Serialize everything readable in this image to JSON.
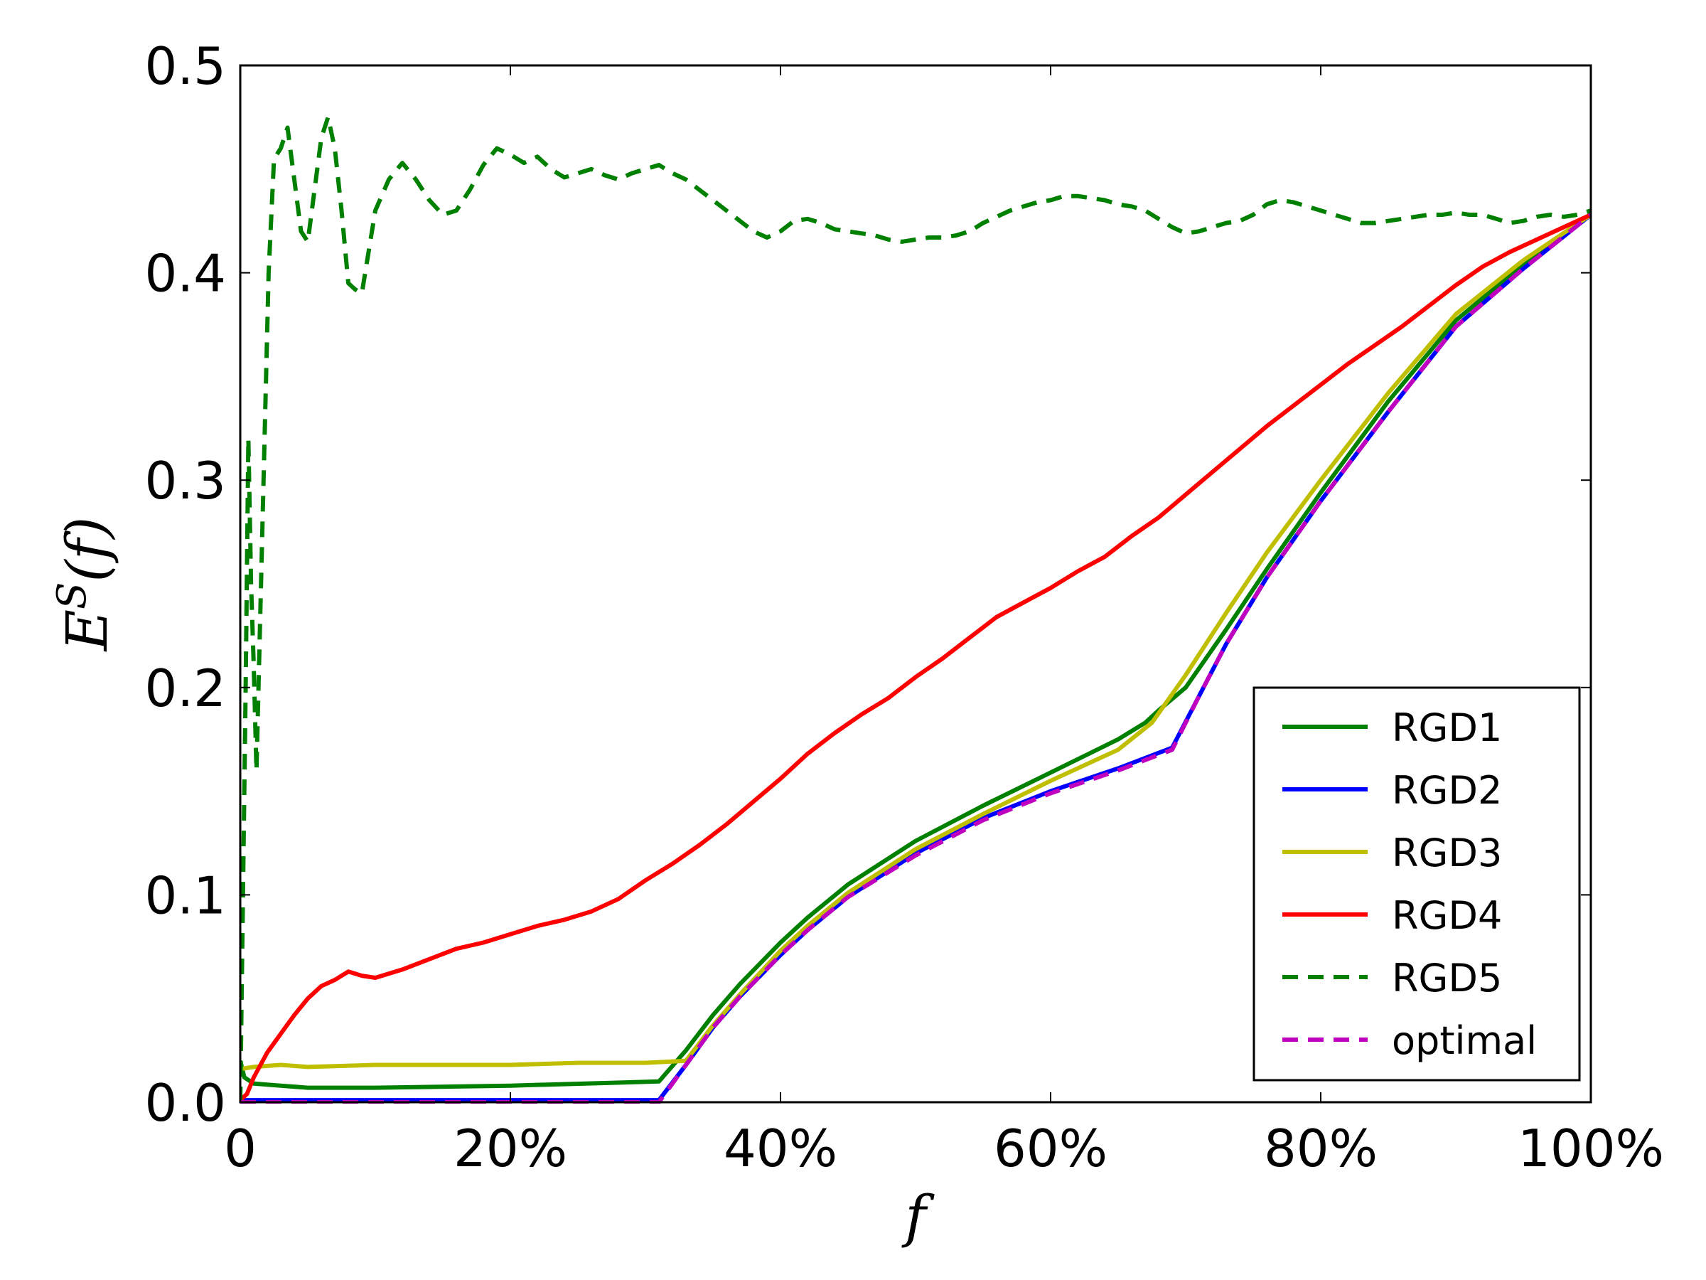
{
  "chart_data": {
    "type": "line",
    "title": "",
    "xlabel": "f",
    "ylabel_base": "E",
    "ylabel_sup": "S",
    "ylabel_arg": "(f)",
    "xlim": [
      0,
      100
    ],
    "ylim": [
      0,
      0.5
    ],
    "xticks": [
      0,
      20,
      40,
      60,
      80,
      100
    ],
    "xtick_labels": [
      "0",
      "20%",
      "40%",
      "60%",
      "80%",
      "100%"
    ],
    "yticks": [
      0.0,
      0.1,
      0.2,
      0.3,
      0.4,
      0.5
    ],
    "ytick_labels": [
      "0.0",
      "0.1",
      "0.2",
      "0.3",
      "0.4",
      "0.5"
    ],
    "grid": false,
    "legend_position": "lower-right",
    "series": [
      {
        "name": "RGD1",
        "color": "#008000",
        "dash": "solid",
        "points": [
          [
            0,
            0.02
          ],
          [
            0.3,
            0.012
          ],
          [
            1,
            0.009
          ],
          [
            3,
            0.008
          ],
          [
            5,
            0.007
          ],
          [
            10,
            0.007
          ],
          [
            20,
            0.008
          ],
          [
            31,
            0.01
          ],
          [
            33,
            0.025
          ],
          [
            35,
            0.042
          ],
          [
            37,
            0.057
          ],
          [
            40,
            0.077
          ],
          [
            42,
            0.089
          ],
          [
            45,
            0.105
          ],
          [
            50,
            0.126
          ],
          [
            55,
            0.143
          ],
          [
            60,
            0.159
          ],
          [
            65,
            0.175
          ],
          [
            67,
            0.183
          ],
          [
            68,
            0.189
          ],
          [
            70,
            0.2
          ],
          [
            73,
            0.228
          ],
          [
            76,
            0.257
          ],
          [
            80,
            0.294
          ],
          [
            85,
            0.338
          ],
          [
            90,
            0.377
          ],
          [
            95,
            0.404
          ],
          [
            100,
            0.428
          ]
        ]
      },
      {
        "name": "RGD2",
        "color": "#0000ff",
        "dash": "solid",
        "points": [
          [
            0,
            0.001
          ],
          [
            10,
            0.001
          ],
          [
            20,
            0.001
          ],
          [
            31,
            0.001
          ],
          [
            33,
            0.018
          ],
          [
            35,
            0.036
          ],
          [
            37,
            0.051
          ],
          [
            40,
            0.071
          ],
          [
            42,
            0.083
          ],
          [
            45,
            0.099
          ],
          [
            50,
            0.12
          ],
          [
            55,
            0.137
          ],
          [
            60,
            0.15
          ],
          [
            65,
            0.161
          ],
          [
            69,
            0.171
          ],
          [
            71,
            0.196
          ],
          [
            73,
            0.221
          ],
          [
            76,
            0.253
          ],
          [
            80,
            0.29
          ],
          [
            85,
            0.333
          ],
          [
            90,
            0.374
          ],
          [
            95,
            0.402
          ],
          [
            100,
            0.428
          ]
        ]
      },
      {
        "name": "RGD3",
        "color": "#bfbf00",
        "dash": "solid",
        "points": [
          [
            0,
            0.016
          ],
          [
            1,
            0.017
          ],
          [
            3,
            0.018
          ],
          [
            5,
            0.017
          ],
          [
            10,
            0.018
          ],
          [
            20,
            0.018
          ],
          [
            25,
            0.019
          ],
          [
            30,
            0.019
          ],
          [
            33,
            0.02
          ],
          [
            35,
            0.037
          ],
          [
            37,
            0.052
          ],
          [
            40,
            0.073
          ],
          [
            42,
            0.085
          ],
          [
            45,
            0.101
          ],
          [
            50,
            0.122
          ],
          [
            55,
            0.139
          ],
          [
            60,
            0.155
          ],
          [
            65,
            0.17
          ],
          [
            67.5,
            0.183
          ],
          [
            70,
            0.206
          ],
          [
            73,
            0.236
          ],
          [
            76,
            0.265
          ],
          [
            80,
            0.3
          ],
          [
            85,
            0.342
          ],
          [
            90,
            0.38
          ],
          [
            95,
            0.406
          ],
          [
            100,
            0.428
          ]
        ]
      },
      {
        "name": "RGD4",
        "color": "#ff0000",
        "dash": "solid",
        "points": [
          [
            0,
            0.001
          ],
          [
            0.5,
            0.004
          ],
          [
            1,
            0.012
          ],
          [
            1.5,
            0.018
          ],
          [
            2,
            0.024
          ],
          [
            3,
            0.033
          ],
          [
            4,
            0.042
          ],
          [
            5,
            0.05
          ],
          [
            6,
            0.056
          ],
          [
            7,
            0.059
          ],
          [
            8,
            0.063
          ],
          [
            9,
            0.061
          ],
          [
            10,
            0.06
          ],
          [
            12,
            0.064
          ],
          [
            14,
            0.069
          ],
          [
            16,
            0.074
          ],
          [
            18,
            0.077
          ],
          [
            20,
            0.081
          ],
          [
            22,
            0.085
          ],
          [
            24,
            0.088
          ],
          [
            26,
            0.092
          ],
          [
            28,
            0.098
          ],
          [
            30,
            0.107
          ],
          [
            32,
            0.115
          ],
          [
            34,
            0.124
          ],
          [
            36,
            0.134
          ],
          [
            38,
            0.145
          ],
          [
            40,
            0.156
          ],
          [
            42,
            0.168
          ],
          [
            44,
            0.178
          ],
          [
            46,
            0.187
          ],
          [
            48,
            0.195
          ],
          [
            50,
            0.205
          ],
          [
            52,
            0.214
          ],
          [
            54,
            0.224
          ],
          [
            56,
            0.234
          ],
          [
            58,
            0.241
          ],
          [
            60,
            0.248
          ],
          [
            62,
            0.256
          ],
          [
            64,
            0.263
          ],
          [
            66,
            0.273
          ],
          [
            68,
            0.282
          ],
          [
            70,
            0.293
          ],
          [
            72,
            0.304
          ],
          [
            74,
            0.315
          ],
          [
            76,
            0.326
          ],
          [
            78,
            0.336
          ],
          [
            80,
            0.346
          ],
          [
            82,
            0.356
          ],
          [
            84,
            0.365
          ],
          [
            86,
            0.374
          ],
          [
            88,
            0.384
          ],
          [
            90,
            0.394
          ],
          [
            92,
            0.403
          ],
          [
            94,
            0.41
          ],
          [
            96,
            0.416
          ],
          [
            98,
            0.422
          ],
          [
            100,
            0.428
          ]
        ]
      },
      {
        "name": "RGD5",
        "color": "#008000",
        "dash": "dashed",
        "points": [
          [
            0,
            0.0
          ],
          [
            0.2,
            0.1
          ],
          [
            0.4,
            0.2
          ],
          [
            0.6,
            0.32
          ],
          [
            0.8,
            0.25
          ],
          [
            1,
            0.21
          ],
          [
            1.2,
            0.16
          ],
          [
            1.5,
            0.24
          ],
          [
            1.8,
            0.32
          ],
          [
            2.1,
            0.4
          ],
          [
            2.5,
            0.455
          ],
          [
            3,
            0.46
          ],
          [
            3.5,
            0.47
          ],
          [
            4,
            0.445
          ],
          [
            4.5,
            0.42
          ],
          [
            5,
            0.415
          ],
          [
            5.5,
            0.44
          ],
          [
            6,
            0.465
          ],
          [
            6.5,
            0.475
          ],
          [
            7,
            0.46
          ],
          [
            7.5,
            0.43
          ],
          [
            8,
            0.395
          ],
          [
            8.5,
            0.392
          ],
          [
            9,
            0.39
          ],
          [
            9.5,
            0.41
          ],
          [
            10,
            0.43
          ],
          [
            11,
            0.445
          ],
          [
            12,
            0.453
          ],
          [
            13,
            0.445
          ],
          [
            14,
            0.435
          ],
          [
            15,
            0.428
          ],
          [
            16,
            0.43
          ],
          [
            17,
            0.44
          ],
          [
            18,
            0.452
          ],
          [
            19,
            0.46
          ],
          [
            20,
            0.457
          ],
          [
            21,
            0.453
          ],
          [
            22,
            0.456
          ],
          [
            23,
            0.45
          ],
          [
            24,
            0.446
          ],
          [
            25,
            0.448
          ],
          [
            26,
            0.45
          ],
          [
            27,
            0.447
          ],
          [
            28,
            0.445
          ],
          [
            29,
            0.448
          ],
          [
            30,
            0.45
          ],
          [
            31,
            0.452
          ],
          [
            32,
            0.448
          ],
          [
            33,
            0.445
          ],
          [
            34,
            0.44
          ],
          [
            35,
            0.435
          ],
          [
            36,
            0.43
          ],
          [
            37,
            0.425
          ],
          [
            38,
            0.42
          ],
          [
            39,
            0.417
          ],
          [
            40,
            0.42
          ],
          [
            41,
            0.425
          ],
          [
            42,
            0.426
          ],
          [
            43,
            0.424
          ],
          [
            44,
            0.421
          ],
          [
            45,
            0.42
          ],
          [
            46,
            0.419
          ],
          [
            47,
            0.418
          ],
          [
            48,
            0.416
          ],
          [
            49,
            0.415
          ],
          [
            50,
            0.416
          ],
          [
            51,
            0.417
          ],
          [
            52,
            0.417
          ],
          [
            53,
            0.418
          ],
          [
            54,
            0.42
          ],
          [
            55,
            0.424
          ],
          [
            56,
            0.427
          ],
          [
            57,
            0.43
          ],
          [
            58,
            0.432
          ],
          [
            59,
            0.434
          ],
          [
            60,
            0.435
          ],
          [
            61,
            0.437
          ],
          [
            62,
            0.437
          ],
          [
            63,
            0.436
          ],
          [
            64,
            0.435
          ],
          [
            65,
            0.433
          ],
          [
            66,
            0.432
          ],
          [
            67,
            0.43
          ],
          [
            68,
            0.426
          ],
          [
            69,
            0.422
          ],
          [
            70,
            0.419
          ],
          [
            71,
            0.42
          ],
          [
            72,
            0.422
          ],
          [
            73,
            0.424
          ],
          [
            74,
            0.425
          ],
          [
            75,
            0.428
          ],
          [
            76,
            0.433
          ],
          [
            77,
            0.435
          ],
          [
            78,
            0.434
          ],
          [
            79,
            0.432
          ],
          [
            80,
            0.43
          ],
          [
            81,
            0.428
          ],
          [
            82,
            0.426
          ],
          [
            83,
            0.424
          ],
          [
            84,
            0.424
          ],
          [
            85,
            0.425
          ],
          [
            86,
            0.426
          ],
          [
            87,
            0.427
          ],
          [
            88,
            0.428
          ],
          [
            89,
            0.428
          ],
          [
            90,
            0.429
          ],
          [
            91,
            0.428
          ],
          [
            92,
            0.428
          ],
          [
            93,
            0.426
          ],
          [
            94,
            0.424
          ],
          [
            95,
            0.425
          ],
          [
            96,
            0.427
          ],
          [
            97,
            0.428
          ],
          [
            98,
            0.427
          ],
          [
            99,
            0.428
          ],
          [
            100,
            0.43
          ]
        ]
      },
      {
        "name": "optimal",
        "color": "#bf00bf",
        "dash": "dashed",
        "points": [
          [
            0,
            0.0
          ],
          [
            10,
            0.0
          ],
          [
            20,
            0.0
          ],
          [
            31,
            0.0
          ],
          [
            33,
            0.018
          ],
          [
            35,
            0.036
          ],
          [
            37,
            0.051
          ],
          [
            40,
            0.071
          ],
          [
            42,
            0.083
          ],
          [
            45,
            0.099
          ],
          [
            50,
            0.119
          ],
          [
            55,
            0.136
          ],
          [
            60,
            0.149
          ],
          [
            65,
            0.16
          ],
          [
            69,
            0.17
          ],
          [
            71,
            0.196
          ],
          [
            73,
            0.221
          ],
          [
            76,
            0.253
          ],
          [
            80,
            0.29
          ],
          [
            85,
            0.333
          ],
          [
            90,
            0.374
          ],
          [
            95,
            0.402
          ],
          [
            100,
            0.428
          ]
        ]
      }
    ]
  }
}
